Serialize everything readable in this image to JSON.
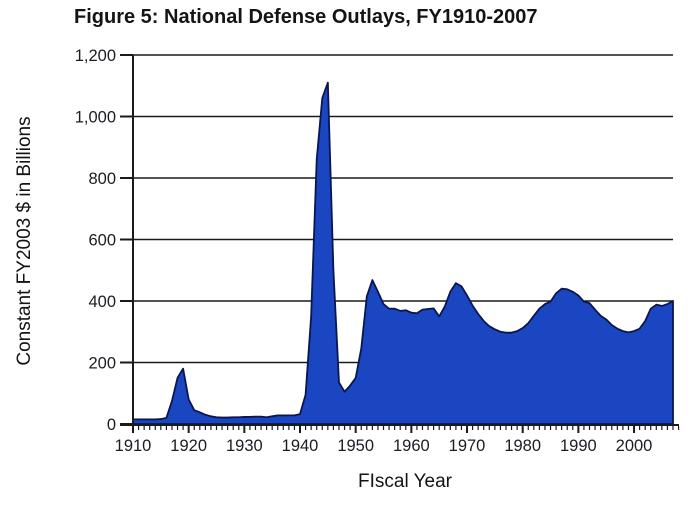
{
  "chart_data": {
    "type": "area",
    "title": "Figure 5: National Defense Outlays, FY1910-2007",
    "xlabel": "FIscal Year",
    "ylabel": "Constant FY2003 $ in Billions",
    "x_range": [
      1910,
      2007
    ],
    "ylim": [
      0,
      1200
    ],
    "y_ticks": [
      0,
      200,
      400,
      600,
      800,
      1000,
      1200
    ],
    "y_tick_labels": [
      "0",
      "200",
      "400",
      "600",
      "800",
      "1,000",
      "1,200"
    ],
    "x_major_ticks": [
      1910,
      1920,
      1930,
      1940,
      1950,
      1960,
      1970,
      1980,
      1990,
      2000
    ],
    "x_major_tick_labels": [
      "1910",
      "1920",
      "1930",
      "1940",
      "1950",
      "1960",
      "1970",
      "1980",
      "1990",
      "2000"
    ],
    "x_minor_tick_step_years": 1,
    "grid": "horizontal",
    "legend": "none",
    "series": [
      {
        "name": "National Defense Outlays",
        "x_start": 1910,
        "values": [
          15,
          15,
          15,
          15,
          15,
          16,
          20,
          75,
          150,
          180,
          80,
          45,
          38,
          30,
          25,
          22,
          21,
          21,
          22,
          22,
          23,
          23,
          24,
          24,
          22,
          25,
          28,
          28,
          28,
          28,
          32,
          95,
          350,
          860,
          1060,
          1110,
          500,
          135,
          105,
          125,
          150,
          245,
          415,
          468,
          430,
          390,
          375,
          375,
          368,
          370,
          362,
          360,
          372,
          374,
          376,
          350,
          382,
          430,
          458,
          448,
          418,
          385,
          358,
          335,
          318,
          308,
          300,
          297,
          297,
          302,
          312,
          328,
          352,
          375,
          390,
          398,
          425,
          440,
          438,
          430,
          418,
          398,
          393,
          372,
          352,
          340,
          322,
          310,
          302,
          298,
          302,
          310,
          335,
          375,
          388,
          384,
          390,
          400
        ]
      }
    ],
    "annotations": []
  },
  "colors": {
    "area_fill": "#1b46c2",
    "area_stroke": "#0a164d",
    "grid_line": "#1a1a1a",
    "axis_line": "#1a1a1a",
    "text": "#1c1c24",
    "background": "#ffffff"
  }
}
